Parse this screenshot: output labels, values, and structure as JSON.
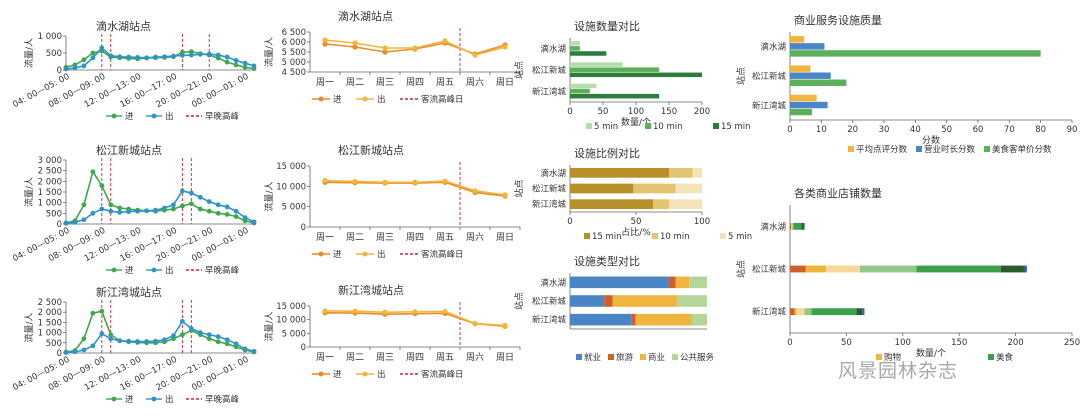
{
  "watermark": "风景园林杂志",
  "colors": {
    "in": "#3fa84a",
    "out": "#2f93c8",
    "peak": "#c0283a",
    "w_in": "#ee8a2a",
    "w_out": "#f1b63a",
    "g_light": "#b8dcb0",
    "g_mid": "#5cb05a",
    "g_dark": "#2d7d3a",
    "b_15": "#b8902a",
    "b_10": "#e3c470",
    "b_5": "#f2e3b8",
    "job": "#4a86c5",
    "tour": "#d0602a",
    "biz": "#f0b53c",
    "pub": "#b5d59a",
    "q_score": "#f0b53c",
    "q_hours": "#4a86c5",
    "q_price": "#5cb05a",
    "shop": [
      "#d0602a",
      "#f0b53c",
      "#f5d89a",
      "#8fc98a",
      "#3aa14a",
      "#2d5a2d",
      "#3a5fb0"
    ]
  },
  "chart_data": [
    {
      "id": "hourly_dishuihu",
      "type": "line",
      "title": "滴水湖站点",
      "ylabel": "流量/人",
      "ylim": [
        0,
        1000
      ],
      "yticks": [
        0,
        500,
        1000
      ],
      "x_labels": [
        "04: 00—05: 00",
        "08: 00—09: 00",
        "12: 00—13: 00",
        "16: 00—17: 00",
        "20: 00—21: 00",
        "00: 00—01: 00"
      ],
      "series": [
        {
          "name": "进",
          "values": [
            80,
            150,
            300,
            500,
            560,
            380,
            360,
            340,
            330,
            350,
            360,
            370,
            390,
            520,
            540,
            480,
            440,
            350,
            230,
            150,
            80,
            40
          ]
        },
        {
          "name": "出",
          "values": [
            30,
            60,
            120,
            360,
            650,
            420,
            390,
            380,
            370,
            360,
            380,
            390,
            410,
            430,
            440,
            460,
            470,
            440,
            380,
            280,
            200,
            120
          ]
        }
      ],
      "peaks": [
        4,
        5,
        13,
        16
      ],
      "legend": [
        "进",
        "出",
        "早晚高峰"
      ]
    },
    {
      "id": "hourly_songjiang",
      "type": "line",
      "title": "松江新城站点",
      "ylabel": "流量/人",
      "ylim": [
        0,
        3000
      ],
      "yticks": [
        0,
        500,
        1000,
        1500,
        2000,
        2500,
        3000
      ],
      "x_labels": [
        "04: 00—05: 00",
        "08: 00—09: 00",
        "12: 00—13: 00",
        "16: 00—17: 00",
        "20: 00—21: 00",
        "00: 00—01: 00"
      ],
      "series": [
        {
          "name": "进",
          "values": [
            50,
            150,
            900,
            2450,
            1800,
            900,
            750,
            700,
            650,
            620,
            600,
            650,
            700,
            850,
            950,
            700,
            600,
            500,
            450,
            350,
            150,
            50
          ]
        },
        {
          "name": "出",
          "values": [
            30,
            80,
            200,
            500,
            700,
            600,
            550,
            580,
            600,
            620,
            650,
            750,
            900,
            1550,
            1450,
            1250,
            1050,
            900,
            800,
            600,
            300,
            100
          ]
        }
      ],
      "peaks": [
        4,
        5,
        13,
        14
      ],
      "legend": [
        "进",
        "出",
        "早晚高峰"
      ]
    },
    {
      "id": "hourly_xinjiang",
      "type": "line",
      "title": "新江湾城站点",
      "ylabel": "流量/人",
      "ylim": [
        0,
        2500
      ],
      "yticks": [
        0,
        500,
        1000,
        1500,
        2000,
        2500
      ],
      "x_labels": [
        "04: 00—05: 00",
        "08: 00—09: 00",
        "12: 00—13: 00",
        "16: 00—17: 00",
        "20: 00—21: 00",
        "00: 00—01: 00"
      ],
      "series": [
        {
          "name": "进",
          "values": [
            50,
            120,
            700,
            1950,
            2050,
            900,
            600,
            550,
            520,
            500,
            500,
            550,
            700,
            900,
            1100,
            900,
            700,
            550,
            450,
            300,
            150,
            50
          ]
        },
        {
          "name": "出",
          "values": [
            20,
            60,
            150,
            350,
            950,
            700,
            600,
            580,
            560,
            560,
            580,
            650,
            850,
            1550,
            1200,
            1000,
            900,
            800,
            650,
            450,
            200,
            80
          ]
        }
      ],
      "peaks": [
        4,
        5,
        13,
        14
      ],
      "legend": [
        "进",
        "出",
        "早晚高峰"
      ]
    },
    {
      "id": "weekly_dishuihu",
      "type": "line",
      "title": "滴水湖站点",
      "ylabel": "流量/人",
      "ylim": [
        4500,
        6500
      ],
      "yticks": [
        4500,
        5000,
        5500,
        6000,
        6500
      ],
      "categories": [
        "周一",
        "周二",
        "周三",
        "周四",
        "周五",
        "周六",
        "周日"
      ],
      "series": [
        {
          "name": "进",
          "values": [
            5900,
            5750,
            5500,
            5650,
            5950,
            5400,
            5850
          ]
        },
        {
          "name": "出",
          "values": [
            6100,
            5950,
            5700,
            5700,
            6050,
            5350,
            5750
          ]
        }
      ],
      "peak": 4,
      "legend": [
        "进",
        "出",
        "客流高峰日"
      ]
    },
    {
      "id": "weekly_songjiang",
      "type": "line",
      "title": "松江新城站点",
      "ylabel": "流量/人",
      "ylim": [
        0,
        15000
      ],
      "yticks": [
        0,
        5000,
        10000,
        15000
      ],
      "categories": [
        "周一",
        "周二",
        "周三",
        "周四",
        "周五",
        "周六",
        "周日"
      ],
      "series": [
        {
          "name": "进",
          "values": [
            11000,
            10900,
            10800,
            10800,
            11000,
            8500,
            7600
          ]
        },
        {
          "name": "出",
          "values": [
            11400,
            11200,
            11000,
            11000,
            11300,
            8900,
            7900
          ]
        }
      ],
      "peak": 4,
      "legend": [
        "进",
        "出",
        "客流高峰日"
      ]
    },
    {
      "id": "weekly_xinjiang",
      "type": "line",
      "title": "新江湾城站点",
      "ylabel": "流量/人",
      "ylim": [
        0,
        15000
      ],
      "yticks": [
        0,
        5000,
        10000,
        15000
      ],
      "categories": [
        "周一",
        "周二",
        "周三",
        "周四",
        "周五",
        "周六",
        "周日"
      ],
      "series": [
        {
          "name": "进",
          "values": [
            12500,
            12400,
            12000,
            12200,
            12300,
            8500,
            7600
          ]
        },
        {
          "name": "出",
          "values": [
            13200,
            13100,
            12700,
            12900,
            13000,
            8600,
            7900
          ]
        }
      ],
      "peak": 4,
      "legend": [
        "进",
        "出",
        "客流高峰日"
      ]
    },
    {
      "id": "facility_count",
      "type": "bar",
      "title": "设施数量对比",
      "xlabel": "数量/个",
      "ylabel": "站点",
      "xlim": [
        0,
        200
      ],
      "xticks": [
        0,
        50,
        100,
        150,
        200
      ],
      "categories": [
        "滴水湖",
        "松江新城",
        "新江湾城"
      ],
      "series": [
        {
          "name": "5 min",
          "values": [
            15,
            80,
            40
          ]
        },
        {
          "name": "10 min",
          "values": [
            15,
            135,
            30
          ]
        },
        {
          "name": "15 min",
          "values": [
            55,
            200,
            135
          ]
        }
      ]
    },
    {
      "id": "facility_ratio",
      "type": "bar",
      "title": "设施比例对比",
      "xlabel": "占比/%",
      "ylabel": "站点",
      "xlim": [
        0,
        100
      ],
      "xticks": [
        0,
        50,
        100
      ],
      "categories": [
        "滴水湖",
        "松江新城",
        "新江湾城"
      ],
      "series": [
        {
          "name": "15 min",
          "values": [
            75,
            48,
            63
          ]
        },
        {
          "name": "10 min",
          "values": [
            18,
            32,
            12
          ]
        },
        {
          "name": "5 min",
          "values": [
            7,
            20,
            25
          ]
        }
      ]
    },
    {
      "id": "facility_type",
      "type": "bar",
      "title": "设施类型对比",
      "ylabel": "站点",
      "categories": [
        "滴水湖",
        "松江新城",
        "新江湾城"
      ],
      "series": [
        {
          "name": "就业",
          "values": [
            72,
            25,
            45
          ]
        },
        {
          "name": "旅游",
          "values": [
            5,
            6,
            3
          ]
        },
        {
          "name": "商业",
          "values": [
            10,
            47,
            41
          ]
        },
        {
          "name": "公共服务",
          "values": [
            13,
            22,
            11
          ]
        }
      ]
    },
    {
      "id": "commerce_quality",
      "type": "bar",
      "title": "商业服务设施质量",
      "xlabel": "分数",
      "ylabel": "站点",
      "xlim": [
        0,
        90
      ],
      "xticks": [
        0,
        10,
        20,
        30,
        40,
        50,
        60,
        70,
        80,
        90
      ],
      "categories": [
        "滴水湖",
        "松江新城",
        "新江湾城"
      ],
      "series": [
        {
          "name": "平均点评分数",
          "values": [
            4.5,
            6.5,
            8.5
          ]
        },
        {
          "name": "营业时长分数",
          "values": [
            11,
            13,
            12
          ]
        },
        {
          "name": "美食客单价分数",
          "values": [
            80,
            18,
            7
          ]
        }
      ]
    },
    {
      "id": "shop_count",
      "type": "bar",
      "title": "各类商业店铺数量",
      "xlabel": "数量/个",
      "ylabel": "站点",
      "xlim": [
        0,
        250
      ],
      "xticks": [
        0,
        50,
        100,
        150,
        200,
        250
      ],
      "categories": [
        "滴水湖",
        "松江新城",
        "新江湾城"
      ],
      "series": [
        {
          "name": "",
          "values": [
            1,
            14,
            4
          ]
        },
        {
          "name": "",
          "values": [
            0,
            18,
            2
          ]
        },
        {
          "name": "",
          "values": [
            1,
            30,
            7
          ]
        },
        {
          "name": "",
          "values": [
            1,
            50,
            6
          ]
        },
        {
          "name": "",
          "values": [
            7,
            75,
            40
          ]
        },
        {
          "name": "",
          "values": [
            2,
            20,
            5
          ]
        },
        {
          "name": "",
          "values": [
            1,
            3,
            2
          ]
        }
      ],
      "legend_visible": [
        "购物",
        "美食"
      ]
    }
  ]
}
